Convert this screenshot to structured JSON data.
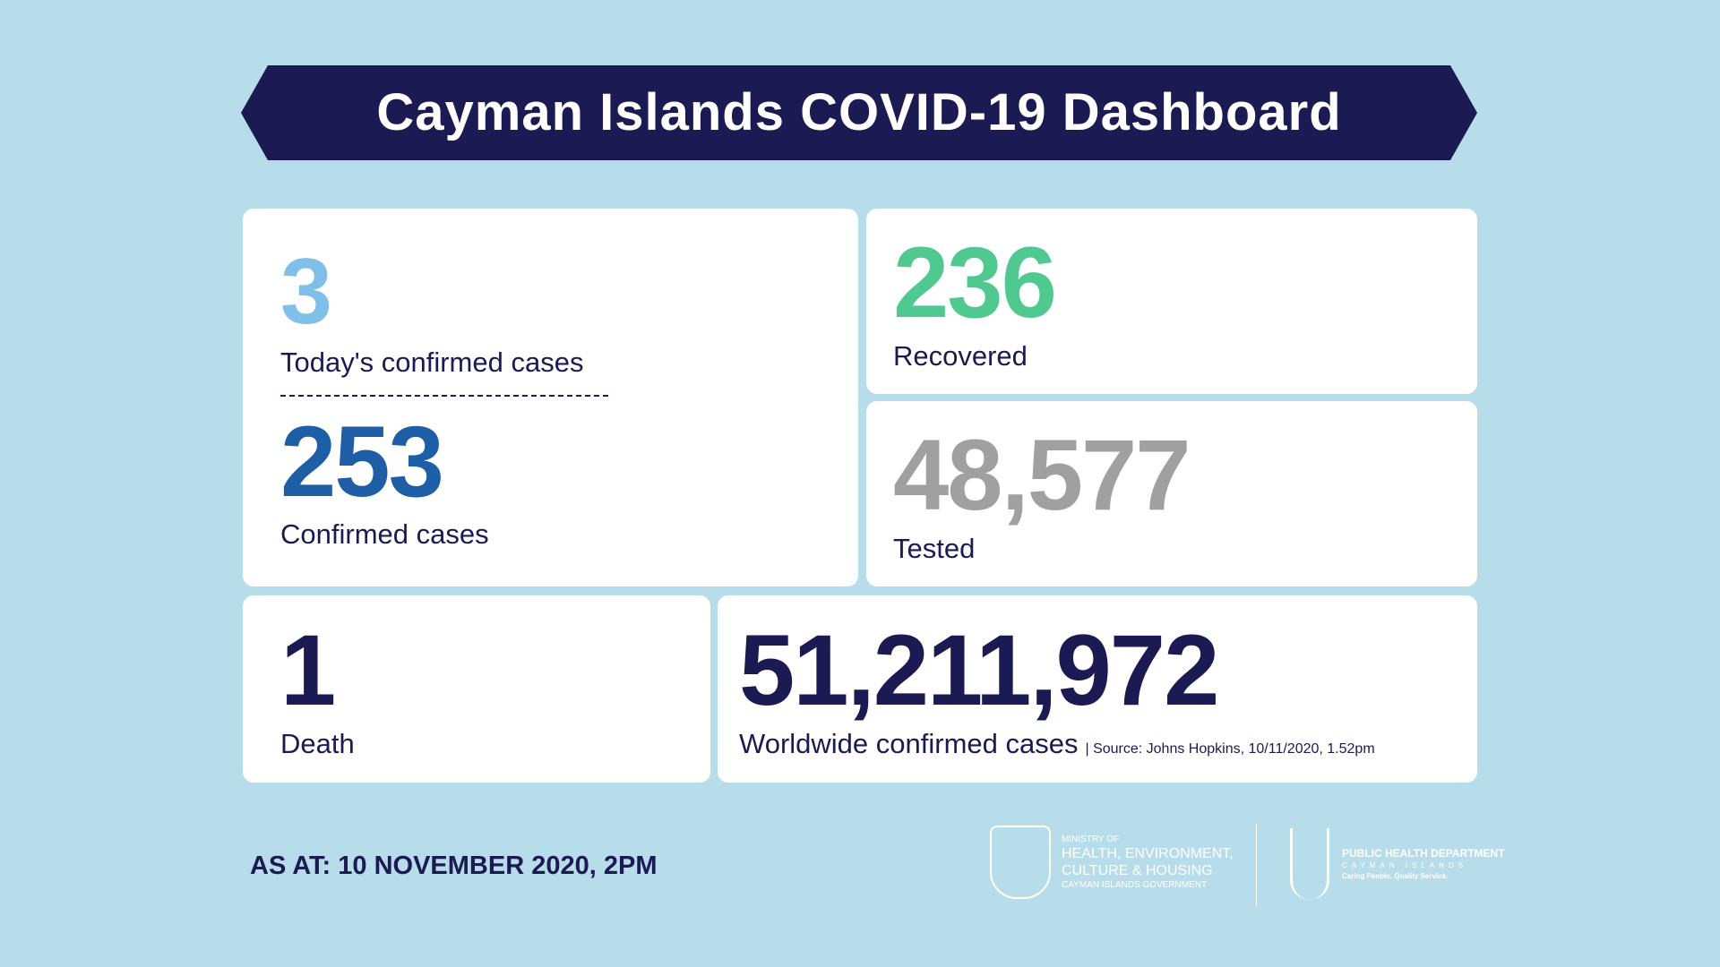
{
  "title": "Cayman Islands COVID-19 Dashboard",
  "today": {
    "value": "3",
    "label": "Today's confirmed cases",
    "color": "#7fbfea"
  },
  "confirmed": {
    "value": "253",
    "label": "Confirmed cases",
    "color": "#1e5ea6"
  },
  "recovered": {
    "value": "236",
    "label": "Recovered",
    "color": "#4fc98f"
  },
  "tested": {
    "value": "48,577",
    "label": "Tested",
    "color": "#a0a0a0"
  },
  "deaths": {
    "value": "1",
    "label": "Death",
    "color": "#1b1a52"
  },
  "worldwide": {
    "value": "51,211,972",
    "label": "Worldwide confirmed cases",
    "source": "| Source: Johns Hopkins, 10/11/2020, 1.52pm"
  },
  "as_at": "AS AT:  10 NOVEMBER 2020, 2PM",
  "logos": {
    "ministry": {
      "line1": "MINISTRY OF",
      "line2": "HEALTH, ENVIRONMENT,",
      "line3": "CULTURE & HOUSING",
      "line4": "CAYMAN ISLANDS GOVERNMENT"
    },
    "phd": {
      "line1": "PUBLIC HEALTH DEPARTMENT",
      "line2": "CAYMAN ISLANDS",
      "line3": "Caring People. Quality Service."
    }
  }
}
